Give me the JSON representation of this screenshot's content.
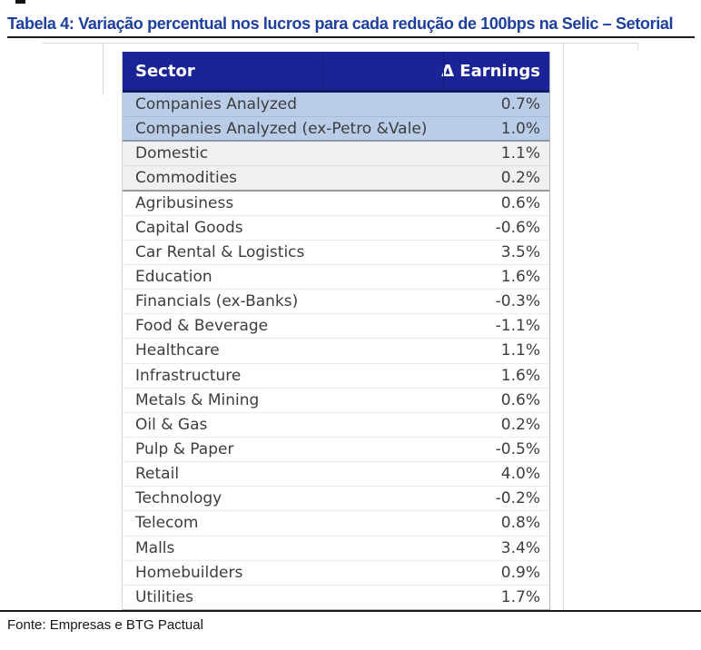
{
  "title": "Tabela 4: Variação percentual nos lucros para cada redução de 100bps na Selic – Setorial",
  "table": {
    "columns": [
      "Sector",
      "Δ Earnings"
    ],
    "rows": [
      {
        "sector": "Companies Analyzed",
        "value": "0.7%",
        "group": "aggregate"
      },
      {
        "sector": "Companies Analyzed (ex-Petro &Vale)",
        "value": "1.0%",
        "group": "aggregate"
      },
      {
        "sector": "Domestic",
        "value": "1.1%",
        "group": "segment"
      },
      {
        "sector": "Commodities",
        "value": "0.2%",
        "group": "segment"
      },
      {
        "sector": "Agribusiness",
        "value": "0.6%",
        "group": "sector"
      },
      {
        "sector": "Capital Goods",
        "value": "-0.6%",
        "group": "sector"
      },
      {
        "sector": "Car Rental & Logistics",
        "value": "3.5%",
        "group": "sector"
      },
      {
        "sector": "Education",
        "value": "1.6%",
        "group": "sector"
      },
      {
        "sector": "Financials (ex-Banks)",
        "value": "-0.3%",
        "group": "sector"
      },
      {
        "sector": "Food & Beverage",
        "value": "-1.1%",
        "group": "sector"
      },
      {
        "sector": "Healthcare",
        "value": "1.1%",
        "group": "sector"
      },
      {
        "sector": "Infrastructure",
        "value": "1.6%",
        "group": "sector"
      },
      {
        "sector": "Metals & Mining",
        "value": "0.6%",
        "group": "sector"
      },
      {
        "sector": "Oil & Gas",
        "value": "0.2%",
        "group": "sector"
      },
      {
        "sector": "Pulp & Paper",
        "value": "-0.5%",
        "group": "sector"
      },
      {
        "sector": "Retail",
        "value": "4.0%",
        "group": "sector"
      },
      {
        "sector": "Technology",
        "value": "-0.2%",
        "group": "sector"
      },
      {
        "sector": "Telecom",
        "value": "0.8%",
        "group": "sector"
      },
      {
        "sector": "Malls",
        "value": "3.4%",
        "group": "sector"
      },
      {
        "sector": "Homebuilders",
        "value": "0.9%",
        "group": "sector"
      },
      {
        "sector": "Utilities",
        "value": "1.7%",
        "group": "sector"
      }
    ]
  },
  "footer": {
    "source": "Fonte: Empresas e BTG Pactual"
  },
  "colors": {
    "title_blue": "#1d3f9e",
    "header_bg": "#1a2496",
    "header_border": "#101a63",
    "aggregate_row_bg": "#b9cce8",
    "segment_row_bg": "#f0f0ee",
    "body_text": "#3d3d3d",
    "footer_line": "#191919"
  }
}
